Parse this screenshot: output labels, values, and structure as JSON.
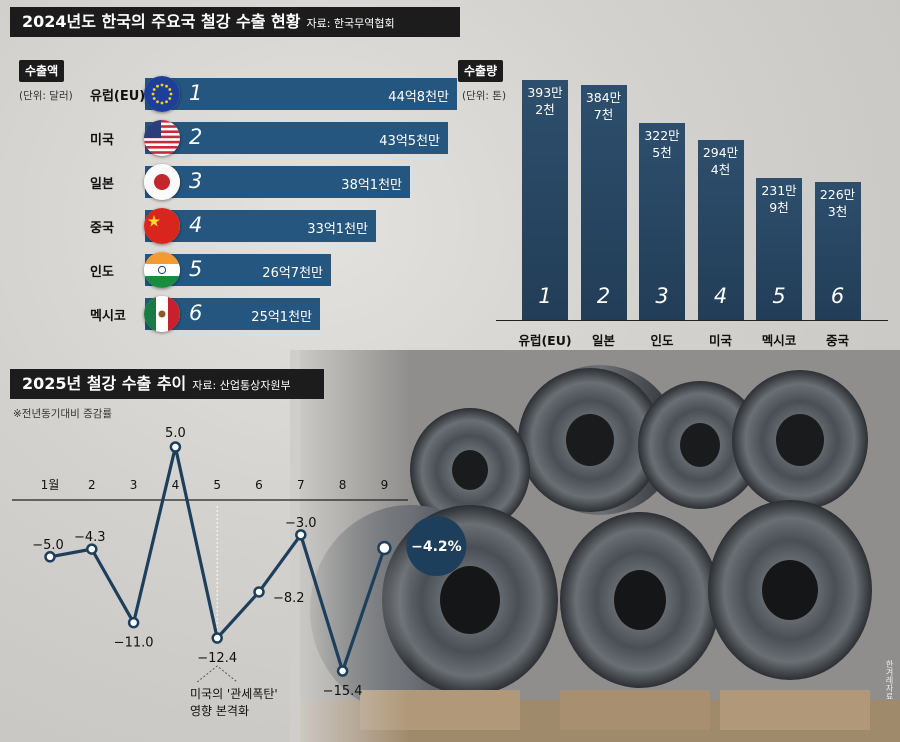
{
  "header": {
    "title": "2024년도 한국의 주요국 철강 수출 현황",
    "source": "자료: 한국무역협회"
  },
  "export_value": {
    "tag": "수출액",
    "unit": "(단위: 달러)"
  },
  "export_volume": {
    "tag": "수출량",
    "unit": "(단위: 톤)"
  },
  "trend": {
    "title": "2025년 철강 수출 추이",
    "source": "자료: 산업통상자원부",
    "note": "※전년동기대비 증감률",
    "annotation_line1": "미국의 '관세폭탄'",
    "annotation_line2": "영향 본격화",
    "highlight_label": "−4.2%"
  },
  "photo_credit": "한겨레자료",
  "colors": {
    "bar": "#24567f",
    "vbar": "#2a4a67",
    "line": "#1e3f5c",
    "dark": "#1c1c1c"
  },
  "chart_data": [
    {
      "type": "bar",
      "orientation": "horizontal",
      "title": "수출액",
      "unit": "달러",
      "categories": [
        "유럽(EU)",
        "미국",
        "일본",
        "중국",
        "인도",
        "멕시코"
      ],
      "ranks": [
        "1",
        "2",
        "3",
        "4",
        "5",
        "6"
      ],
      "values": [
        4480000000,
        4350000000,
        3810000000,
        3310000000,
        2670000000,
        2510000000
      ],
      "value_labels": [
        "44억8천만",
        "43억5천만",
        "38억1천만",
        "33억1천만",
        "26억7천만",
        "25억1천만"
      ],
      "flags": [
        "eu-flag",
        "us-flag",
        "japan-flag",
        "china-flag",
        "india-flag",
        "mexico-flag"
      ]
    },
    {
      "type": "bar",
      "orientation": "vertical",
      "title": "수출량",
      "unit": "톤",
      "categories": [
        "유럽(EU)",
        "일본",
        "인도",
        "미국",
        "멕시코",
        "중국"
      ],
      "ranks": [
        "1",
        "2",
        "3",
        "4",
        "5",
        "6"
      ],
      "values": [
        3932000,
        3847000,
        3225000,
        2944000,
        2319000,
        2263000
      ],
      "value_labels": [
        "393만\n2천",
        "384만\n7천",
        "322만\n5천",
        "294만\n4천",
        "231만\n9천",
        "226만\n3천"
      ]
    },
    {
      "type": "line",
      "title": "2025년 철강 수출 추이",
      "unit": "%",
      "x": [
        "1월",
        "2",
        "3",
        "4",
        "5",
        "6",
        "7",
        "8",
        "9"
      ],
      "values": [
        -5.0,
        -4.3,
        -11.0,
        5.0,
        -12.4,
        -8.2,
        -3.0,
        -15.4,
        -4.2
      ],
      "value_labels": [
        "−5.0",
        "−4.3",
        "−11.0",
        "5.0",
        "−12.4",
        "−8.2",
        "−3.0",
        "−15.4",
        "−4.2%"
      ],
      "highlight_index": 8
    }
  ]
}
